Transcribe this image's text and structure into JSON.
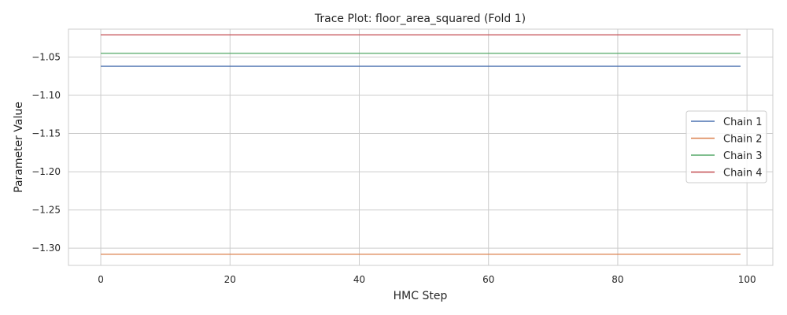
{
  "chart_data": {
    "type": "line",
    "title": "Trace Plot: floor_area_squared (Fold 1)",
    "xlabel": "HMC Step",
    "ylabel": "Parameter Value",
    "xlim": [
      -5,
      104
    ],
    "ylim": [
      -1.3225,
      -1.0135
    ],
    "xticks": [
      0,
      20,
      40,
      60,
      80,
      100
    ],
    "yticks": [
      -1.3,
      -1.25,
      -1.2,
      -1.15,
      -1.1,
      -1.05
    ],
    "grid": true,
    "legend_position": "center-right",
    "series": [
      {
        "name": "Chain 1",
        "color": "#4c72b0",
        "x": [
          0,
          99
        ],
        "values": [
          -1.062,
          -1.062
        ]
      },
      {
        "name": "Chain 2",
        "color": "#dd8452",
        "x": [
          0,
          99
        ],
        "values": [
          -1.308,
          -1.308
        ]
      },
      {
        "name": "Chain 3",
        "color": "#55a868",
        "x": [
          0,
          99
        ],
        "values": [
          -1.045,
          -1.045
        ]
      },
      {
        "name": "Chain 4",
        "color": "#c44e52",
        "x": [
          0,
          99
        ],
        "values": [
          -1.021,
          -1.021
        ]
      }
    ]
  }
}
